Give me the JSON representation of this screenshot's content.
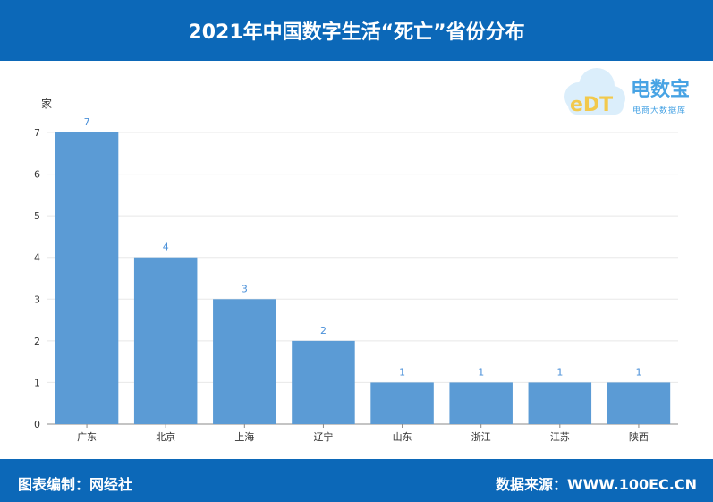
{
  "header": {
    "title": "2021年中国数字生活“死亡”省份分布"
  },
  "footer": {
    "editor": "图表编制：网经社",
    "source": "数据来源：WWW.100EC.CN"
  },
  "logo": {
    "name": "电数宝",
    "subtitle": "电商大数据库",
    "mark": "eDT"
  },
  "colors": {
    "header_bg": "#0c68b8",
    "bar": "#5b9bd5",
    "label": "#4a90d9"
  },
  "chart_data": {
    "type": "bar",
    "ylabel": "家",
    "categories": [
      "广东",
      "北京",
      "上海",
      "辽宁",
      "山东",
      "浙江",
      "江苏",
      "陕西"
    ],
    "values": [
      7,
      4,
      3,
      2,
      1,
      1,
      1,
      1
    ],
    "ylim": [
      0,
      7
    ],
    "yticks": [
      0,
      1,
      2,
      3,
      4,
      5,
      6,
      7
    ],
    "grid": true,
    "data_labels": true
  }
}
